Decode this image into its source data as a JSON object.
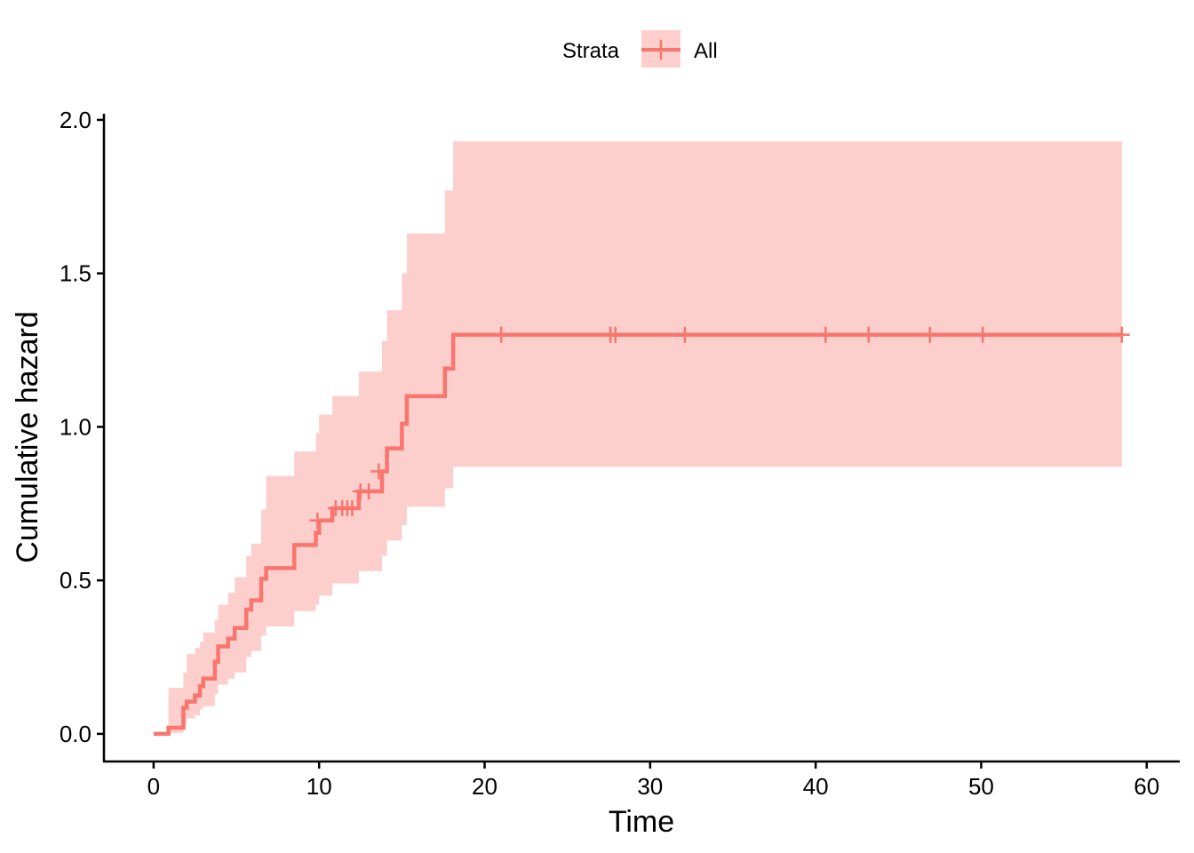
{
  "chart_data": {
    "type": "line",
    "subtype": "step cumulative hazard with confidence band",
    "xlabel": "Time",
    "ylabel": "Cumulative hazard",
    "xlim": [
      -3,
      62
    ],
    "ylim": [
      -0.09,
      2.02
    ],
    "x_ticks": [
      0,
      10,
      20,
      30,
      40,
      50,
      60
    ],
    "y_ticks": [
      0.0,
      0.5,
      1.0,
      1.5,
      2.0
    ],
    "x_tick_labels": [
      "0",
      "10",
      "20",
      "30",
      "40",
      "50",
      "60"
    ],
    "y_tick_labels": [
      "0.0",
      "0.5",
      "1.0",
      "1.5",
      "2.0"
    ],
    "grid": false,
    "legend": {
      "title": "Strata",
      "position": "top",
      "entries": [
        {
          "label": "All",
          "color": "#F8766D"
        }
      ]
    },
    "series": [
      {
        "name": "All",
        "color": "#F8766D",
        "fill_color": "#F8766D",
        "fill_opacity": 0.35,
        "steps": [
          {
            "x": 0.0,
            "y": 0.0,
            "lower": 0.0,
            "upper": 0.0
          },
          {
            "x": 0.9,
            "y": 0.02,
            "lower": 0.003,
            "upper": 0.15
          },
          {
            "x": 1.8,
            "y": 0.085,
            "lower": 0.03,
            "upper": 0.2
          },
          {
            "x": 2.0,
            "y": 0.105,
            "lower": 0.05,
            "upper": 0.26
          },
          {
            "x": 2.5,
            "y": 0.125,
            "lower": 0.06,
            "upper": 0.28
          },
          {
            "x": 2.8,
            "y": 0.155,
            "lower": 0.08,
            "upper": 0.3
          },
          {
            "x": 3.0,
            "y": 0.18,
            "lower": 0.09,
            "upper": 0.33
          },
          {
            "x": 3.7,
            "y": 0.235,
            "lower": 0.13,
            "upper": 0.37
          },
          {
            "x": 3.9,
            "y": 0.285,
            "lower": 0.16,
            "upper": 0.42
          },
          {
            "x": 4.5,
            "y": 0.31,
            "lower": 0.18,
            "upper": 0.46
          },
          {
            "x": 4.9,
            "y": 0.345,
            "lower": 0.2,
            "upper": 0.51
          },
          {
            "x": 5.6,
            "y": 0.405,
            "lower": 0.25,
            "upper": 0.58
          },
          {
            "x": 5.9,
            "y": 0.435,
            "lower": 0.27,
            "upper": 0.62
          },
          {
            "x": 6.5,
            "y": 0.505,
            "lower": 0.32,
            "upper": 0.73
          },
          {
            "x": 6.8,
            "y": 0.54,
            "lower": 0.35,
            "upper": 0.84
          },
          {
            "x": 8.5,
            "y": 0.615,
            "lower": 0.4,
            "upper": 0.92
          },
          {
            "x": 9.8,
            "y": 0.655,
            "lower": 0.42,
            "upper": 0.98
          },
          {
            "x": 10.0,
            "y": 0.695,
            "lower": 0.45,
            "upper": 1.04
          },
          {
            "x": 10.8,
            "y": 0.735,
            "lower": 0.49,
            "upper": 1.1
          },
          {
            "x": 12.4,
            "y": 0.79,
            "lower": 0.53,
            "upper": 1.18
          },
          {
            "x": 13.8,
            "y": 0.855,
            "lower": 0.58,
            "upper": 1.28
          },
          {
            "x": 14.1,
            "y": 0.93,
            "lower": 0.63,
            "upper": 1.38
          },
          {
            "x": 15.0,
            "y": 1.01,
            "lower": 0.68,
            "upper": 1.5
          },
          {
            "x": 15.3,
            "y": 1.1,
            "lower": 0.74,
            "upper": 1.63
          },
          {
            "x": 17.6,
            "y": 1.19,
            "lower": 0.8,
            "upper": 1.77
          },
          {
            "x": 18.1,
            "y": 1.3,
            "lower": 0.87,
            "upper": 1.93
          },
          {
            "x": 58.5,
            "y": 1.3,
            "lower": 0.87,
            "upper": 1.93
          }
        ],
        "censor_marks": [
          {
            "x": 9.9,
            "y": 0.695
          },
          {
            "x": 11.0,
            "y": 0.735
          },
          {
            "x": 11.4,
            "y": 0.735
          },
          {
            "x": 11.7,
            "y": 0.735
          },
          {
            "x": 12.0,
            "y": 0.735
          },
          {
            "x": 12.5,
            "y": 0.79
          },
          {
            "x": 13.0,
            "y": 0.79
          },
          {
            "x": 13.6,
            "y": 0.855
          },
          {
            "x": 21.0,
            "y": 1.3
          },
          {
            "x": 27.6,
            "y": 1.3
          },
          {
            "x": 27.9,
            "y": 1.3
          },
          {
            "x": 32.1,
            "y": 1.3
          },
          {
            "x": 40.6,
            "y": 1.3
          },
          {
            "x": 43.2,
            "y": 1.3
          },
          {
            "x": 46.9,
            "y": 1.3
          },
          {
            "x": 50.1,
            "y": 1.3
          },
          {
            "x": 58.5,
            "y": 1.3
          }
        ]
      }
    ]
  }
}
